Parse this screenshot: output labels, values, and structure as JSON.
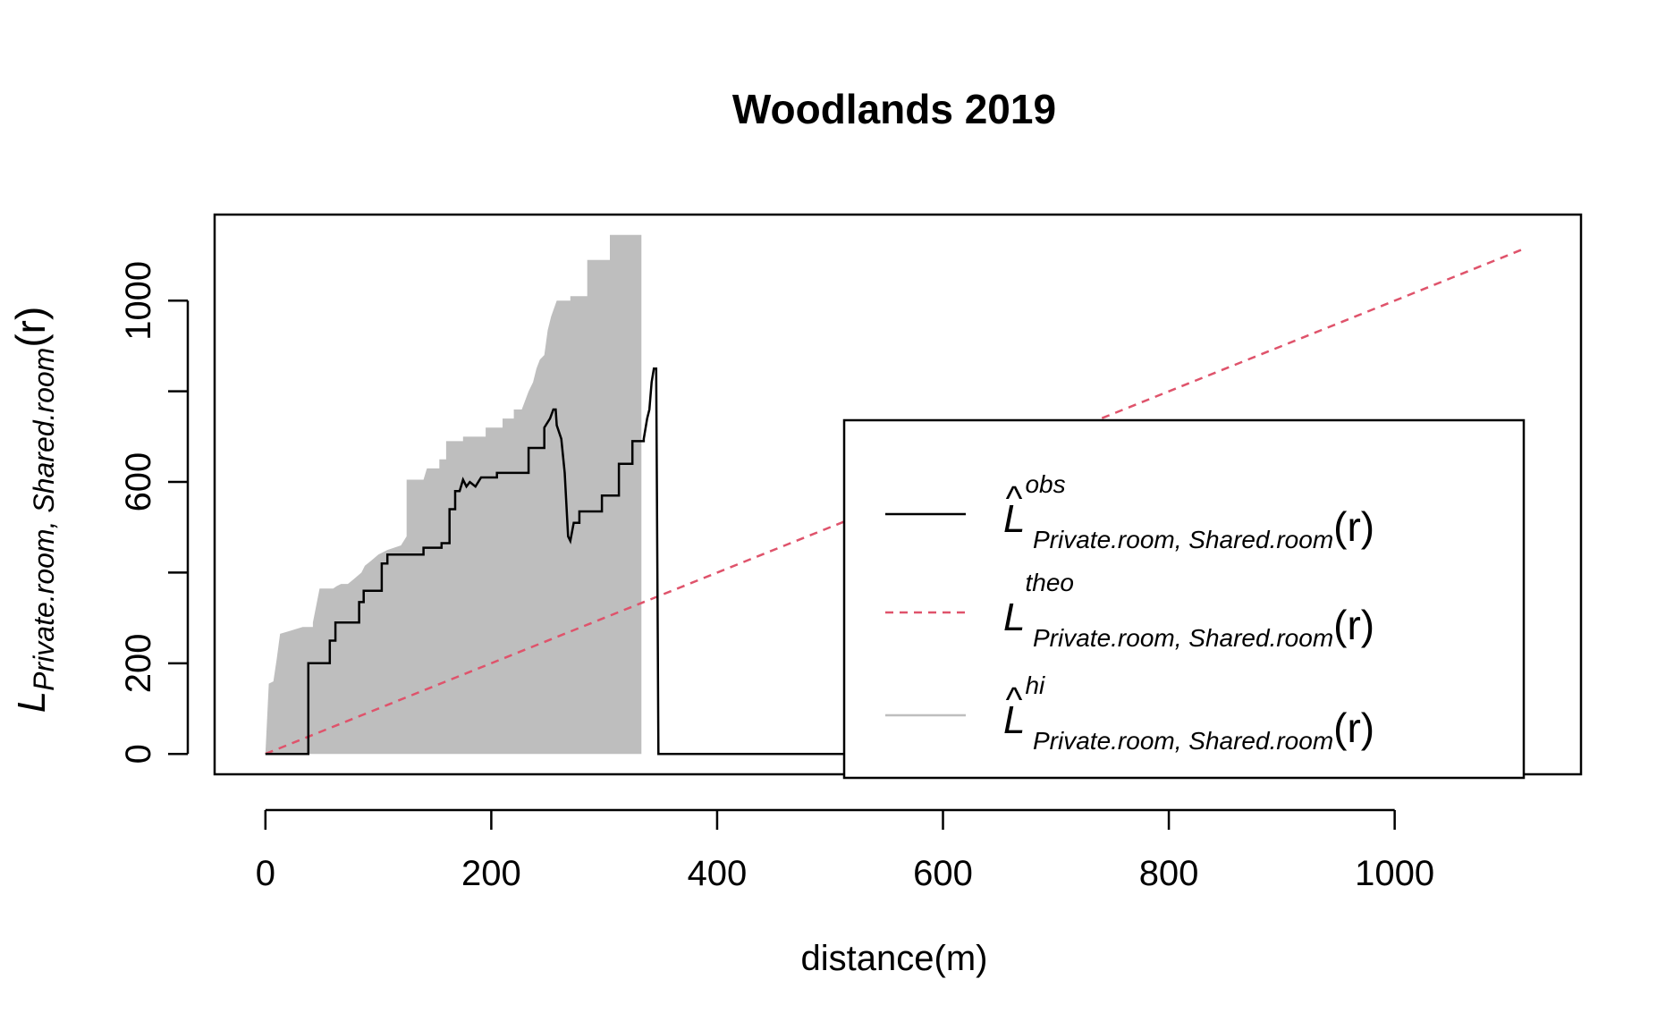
{
  "chart_data": {
    "type": "line",
    "title": "Woodlands 2019",
    "xlabel": "distance(m)",
    "ylabel": {
      "main": "L",
      "sub": "Private.room, Shared.room",
      "arg": "(r)"
    },
    "xlim": [
      -45,
      1165
    ],
    "ylim": [
      -45,
      1190
    ],
    "xticks": [
      0,
      200,
      400,
      600,
      800,
      1000
    ],
    "yticks": [
      0,
      200,
      600,
      1000
    ],
    "yticks_minor": [
      400,
      800
    ],
    "colors": {
      "obs": "#000000",
      "theo": "#DF536B",
      "hi": "#BEBEBE"
    },
    "series": [
      {
        "name": "obs",
        "kind": "step",
        "points": [
          [
            0,
            0
          ],
          [
            38,
            0
          ],
          [
            38,
            200
          ],
          [
            57,
            200
          ],
          [
            57,
            250
          ],
          [
            62,
            250
          ],
          [
            62,
            290
          ],
          [
            83,
            290
          ],
          [
            83,
            335
          ],
          [
            87,
            335
          ],
          [
            87,
            360
          ],
          [
            103,
            360
          ],
          [
            103,
            420
          ],
          [
            108,
            420
          ],
          [
            108,
            440
          ],
          [
            125,
            440
          ],
          [
            125,
            440
          ],
          [
            140,
            440
          ],
          [
            140,
            455
          ],
          [
            156,
            455
          ],
          [
            156,
            465
          ],
          [
            163,
            465
          ],
          [
            163,
            540
          ],
          [
            168,
            540
          ],
          [
            168,
            580
          ],
          [
            172,
            580
          ],
          [
            175,
            605
          ],
          [
            178,
            590
          ],
          [
            181,
            600
          ],
          [
            186,
            590
          ],
          [
            191,
            610
          ],
          [
            205,
            610
          ],
          [
            205,
            620
          ],
          [
            229,
            620
          ],
          [
            229,
            620
          ],
          [
            233,
            620
          ],
          [
            233,
            675
          ],
          [
            247,
            675
          ],
          [
            247,
            720
          ],
          [
            252,
            740
          ],
          [
            255,
            760
          ],
          [
            257,
            760
          ],
          [
            258,
            725
          ],
          [
            262,
            695
          ],
          [
            265,
            620
          ],
          [
            268,
            480
          ],
          [
            270,
            470
          ],
          [
            273,
            510
          ],
          [
            278,
            510
          ],
          [
            278,
            535
          ],
          [
            298,
            535
          ],
          [
            298,
            570
          ],
          [
            313,
            570
          ],
          [
            313,
            640
          ],
          [
            325,
            640
          ],
          [
            325,
            690
          ],
          [
            335,
            690
          ],
          [
            335,
            695
          ],
          [
            338,
            740
          ],
          [
            340,
            760
          ],
          [
            342,
            820
          ],
          [
            344,
            850
          ],
          [
            346,
            850
          ],
          [
            347,
            450
          ],
          [
            348,
            0
          ],
          [
            600,
            0
          ]
        ]
      },
      {
        "name": "theo",
        "kind": "line",
        "points": [
          [
            0,
            0
          ],
          [
            1115,
            1115
          ]
        ]
      },
      {
        "name": "hi",
        "kind": "band",
        "upper": [
          [
            0,
            0
          ],
          [
            3,
            155
          ],
          [
            7,
            160
          ],
          [
            10,
            210
          ],
          [
            13,
            265
          ],
          [
            20,
            270
          ],
          [
            33,
            280
          ],
          [
            42,
            280
          ],
          [
            42,
            290
          ],
          [
            48,
            365
          ],
          [
            55,
            365
          ],
          [
            60,
            365
          ],
          [
            63,
            370
          ],
          [
            67,
            375
          ],
          [
            73,
            375
          ],
          [
            78,
            385
          ],
          [
            85,
            400
          ],
          [
            88,
            415
          ],
          [
            93,
            425
          ],
          [
            100,
            440
          ],
          [
            108,
            450
          ],
          [
            120,
            460
          ],
          [
            125,
            480
          ],
          [
            125,
            605
          ],
          [
            140,
            605
          ],
          [
            143,
            630
          ],
          [
            154,
            630
          ],
          [
            154,
            650
          ],
          [
            160,
            650
          ],
          [
            160,
            690
          ],
          [
            175,
            690
          ],
          [
            175,
            700
          ],
          [
            195,
            700
          ],
          [
            195,
            720
          ],
          [
            210,
            720
          ],
          [
            210,
            740
          ],
          [
            220,
            740
          ],
          [
            220,
            760
          ],
          [
            227,
            760
          ],
          [
            233,
            800
          ],
          [
            237,
            820
          ],
          [
            240,
            850
          ],
          [
            243,
            870
          ],
          [
            247,
            880
          ],
          [
            250,
            935
          ],
          [
            253,
            965
          ],
          [
            258,
            1000
          ],
          [
            270,
            1000
          ],
          [
            270,
            1010
          ],
          [
            285,
            1010
          ],
          [
            285,
            1090
          ],
          [
            305,
            1090
          ],
          [
            305,
            1145
          ],
          [
            333,
            1145
          ],
          [
            333,
            0
          ]
        ]
      }
    ],
    "legend": {
      "position": "bottom-right",
      "entries": [
        {
          "series": "obs",
          "sup": "obs",
          "sub": "Private.room, Shared.room",
          "hat": true
        },
        {
          "series": "theo",
          "sup": "theo",
          "sub": "Private.room, Shared.room",
          "hat": false
        },
        {
          "series": "hi",
          "sup": "hi",
          "sub": "Private.room, Shared.room",
          "hat": true
        }
      ],
      "main": "L",
      "arg": "(r)"
    }
  }
}
